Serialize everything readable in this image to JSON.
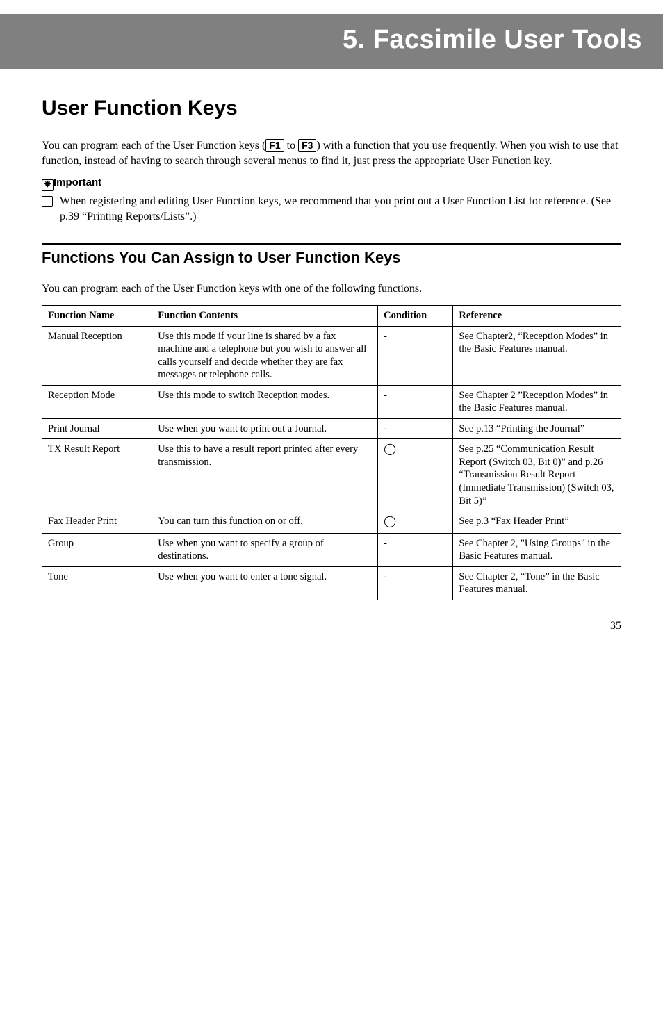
{
  "chapter": {
    "title": "5. Facsimile User Tools"
  },
  "section": {
    "title": "User Function Keys"
  },
  "intro": {
    "part1": "You can program each of the User Function keys (",
    "key1": "F1",
    "mid": " to ",
    "key2": "F3",
    "part2": ") with a function that you use frequently. When you wish to use that function, instead of having to search through several menus to find it, just press the appropriate User Function key."
  },
  "important": {
    "label": "Important",
    "text": "When registering and editing User Function keys, we recommend that you print out a User Function List for reference. (See p.39 “Printing Reports/Lists”.)"
  },
  "subsection": {
    "title": "Functions You Can Assign to User Function Keys",
    "lead": "You can program each of the User Function keys with one of the following functions."
  },
  "table": {
    "columns": {
      "name": "Function Name",
      "contents": "Function Contents",
      "condition": "Condition",
      "reference": "Reference"
    },
    "col_widths": {
      "name": "19%",
      "contents": "39%",
      "condition": "13%",
      "reference": "29%"
    },
    "rows": [
      {
        "name": "Manual Reception",
        "contents": "Use this mode if your line is shared by a fax machine and a telephone but you wish to answer all calls yourself and decide whether they are fax messages or telephone calls.",
        "condition": "-",
        "condition_is_circle": false,
        "reference": "See Chapter2, “Reception Modes” in the Basic Features manual."
      },
      {
        "name": "Reception Mode",
        "contents": "Use this mode to switch Reception modes.",
        "condition": "-",
        "condition_is_circle": false,
        "reference": "See Chapter 2 ”Reception Modes” in the Basic Features manual."
      },
      {
        "name": "Print Journal",
        "contents": "Use when you want to print out a Journal.",
        "condition": "-",
        "condition_is_circle": false,
        "reference": "See p.13 “Printing the Journal”"
      },
      {
        "name": "TX Result Report",
        "contents": "Use this to have a result report printed after every transmission.",
        "condition": "◯",
        "condition_is_circle": true,
        "reference": "See p.25 “Communication Result Report (Switch 03, Bit 0)” and p.26 “Transmission Result Report (Immediate Transmission) (Switch 03, Bit 5)”"
      },
      {
        "name": "Fax Header Print",
        "contents": "You can turn this function on or off.",
        "condition": "◯",
        "condition_is_circle": true,
        "reference": "See p.3 “Fax Header Print”"
      },
      {
        "name": "Group",
        "contents": "Use when you want to specify a group of destinations.",
        "condition": "-",
        "condition_is_circle": false,
        "reference": "See Chapter 2, \"Using Groups\" in the Basic Features manual."
      },
      {
        "name": "Tone",
        "contents": "Use when you want to enter a tone signal.",
        "condition": "-",
        "condition_is_circle": false,
        "reference": "See Chapter 2, “Tone” in the Basic Features manual."
      }
    ]
  },
  "page_number": "35",
  "styling": {
    "banner_bg": "#808080",
    "banner_fg": "#ffffff",
    "page_bg": "#ffffff",
    "text_color": "#000000"
  }
}
